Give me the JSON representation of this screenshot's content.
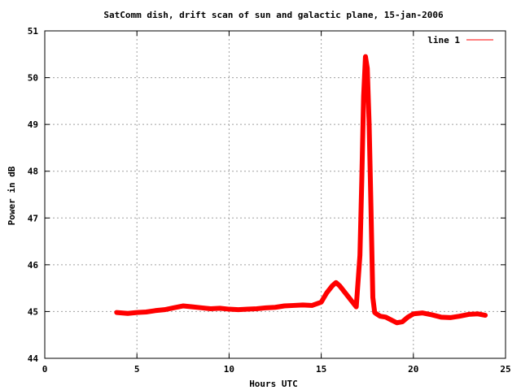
{
  "chart_data": {
    "type": "line",
    "title": "SatComm dish, drift scan of sun and galactic plane, 15-jan-2006",
    "xlabel": "Hours UTC",
    "ylabel": "Power in dB",
    "xlim": [
      0,
      25
    ],
    "ylim": [
      44,
      51
    ],
    "xticks": [
      0,
      5,
      10,
      15,
      20,
      25
    ],
    "yticks": [
      44,
      45,
      46,
      47,
      48,
      49,
      50,
      51
    ],
    "grid": true,
    "legend_position": "top-right",
    "series": [
      {
        "name": "line 1",
        "color": "#ff0000",
        "x": [
          3.9,
          4.5,
          5.0,
          5.5,
          6.0,
          6.5,
          7.0,
          7.5,
          8.0,
          8.5,
          9.0,
          9.5,
          10.0,
          10.5,
          11.0,
          11.5,
          12.0,
          12.5,
          13.0,
          13.5,
          14.0,
          14.5,
          15.0,
          15.3,
          15.6,
          15.8,
          16.0,
          16.3,
          16.6,
          16.9,
          17.1,
          17.2,
          17.3,
          17.4,
          17.5,
          17.6,
          17.7,
          17.8,
          17.9,
          18.0,
          18.2,
          18.5,
          18.8,
          19.1,
          19.4,
          19.7,
          20.0,
          20.5,
          21.0,
          21.5,
          22.0,
          22.5,
          23.0,
          23.5,
          23.9
        ],
        "y": [
          44.98,
          44.96,
          44.98,
          44.99,
          45.02,
          45.04,
          45.08,
          45.12,
          45.1,
          45.08,
          45.06,
          45.07,
          45.05,
          45.04,
          45.05,
          45.06,
          45.08,
          45.09,
          45.12,
          45.13,
          45.14,
          45.13,
          45.2,
          45.4,
          45.55,
          45.62,
          45.55,
          45.4,
          45.25,
          45.1,
          46.2,
          47.8,
          49.6,
          50.45,
          50.2,
          49.0,
          47.2,
          45.3,
          44.98,
          44.95,
          44.9,
          44.88,
          44.82,
          44.76,
          44.78,
          44.88,
          44.95,
          44.97,
          44.93,
          44.88,
          44.87,
          44.9,
          44.94,
          44.95,
          44.92
        ]
      }
    ]
  }
}
